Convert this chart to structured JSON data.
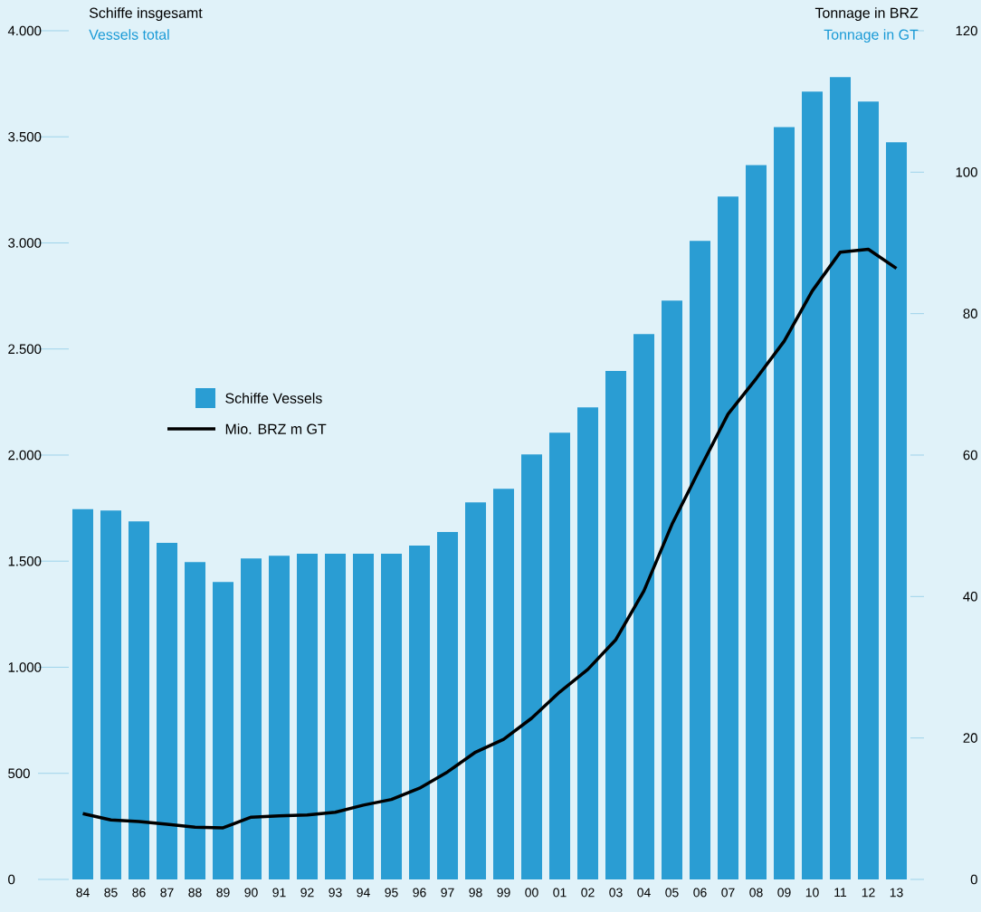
{
  "chart_data": {
    "type": "bar",
    "ylabel": "Schiffe insgesamt",
    "y2label": "Tonnage in BRZ",
    "annotations": [
      "Vessels total",
      "Tonnage in GT"
    ],
    "categories": [
      "84",
      "85",
      "86",
      "87",
      "88",
      "89",
      "90",
      "91",
      "92",
      "93",
      "94",
      "95",
      "96",
      "97",
      "98",
      "99",
      "00",
      "01",
      "02",
      "03",
      "04",
      "05",
      "06",
      "07",
      "08",
      "09",
      "10",
      "11",
      "12",
      "13"
    ],
    "series": [
      {
        "name": "Schiffe Vessels",
        "color": "#2a9dd3",
        "values": [
          1745,
          1739,
          1688,
          1586,
          1496,
          1402,
          1513,
          1526,
          1535,
          1535,
          1535,
          1535,
          1573,
          1637,
          1777,
          1841,
          2003,
          2106,
          2225,
          2396,
          2570,
          2728,
          3009,
          3218,
          3367,
          3546,
          3713,
          3781,
          3666,
          3474
        ]
      },
      {
        "name": "Mio. BRZ m GT",
        "type": "line",
        "axis": "y2",
        "color": "#000000",
        "values": [
          9.3,
          8.4,
          8.2,
          7.8,
          7.4,
          7.3,
          8.8,
          9.0,
          9.1,
          9.5,
          10.5,
          11.3,
          12.9,
          15.2,
          18.0,
          19.8,
          22.8,
          26.5,
          29.7,
          33.9,
          40.8,
          50.2,
          58.1,
          65.8,
          70.8,
          76.1,
          83.2,
          88.7,
          89.1,
          86.4
        ]
      }
    ],
    "ylim": [
      0,
      4000
    ],
    "yticks": [
      {
        "value": 0,
        "label": "0"
      },
      {
        "value": 500,
        "label": "500"
      },
      {
        "value": 1000,
        "label": "1.000"
      },
      {
        "value": 1500,
        "label": "1.500"
      },
      {
        "value": 2000,
        "label": "2.000"
      },
      {
        "value": 2500,
        "label": "2.500"
      },
      {
        "value": 3000,
        "label": "3.000"
      },
      {
        "value": 3500,
        "label": "3.500"
      },
      {
        "value": 4000,
        "label": "4.000"
      }
    ],
    "y2lim": [
      0,
      120
    ],
    "y2ticks": [
      {
        "value": 0,
        "label": "0"
      },
      {
        "value": 20,
        "label": "20"
      },
      {
        "value": 40,
        "label": "40"
      },
      {
        "value": 60,
        "label": "60"
      },
      {
        "value": 80,
        "label": "80"
      },
      {
        "value": 100,
        "label": "100"
      },
      {
        "value": 120,
        "label": "120"
      }
    ],
    "legend": "left",
    "grid": false,
    "marker": "none",
    "line_style": "solid"
  }
}
